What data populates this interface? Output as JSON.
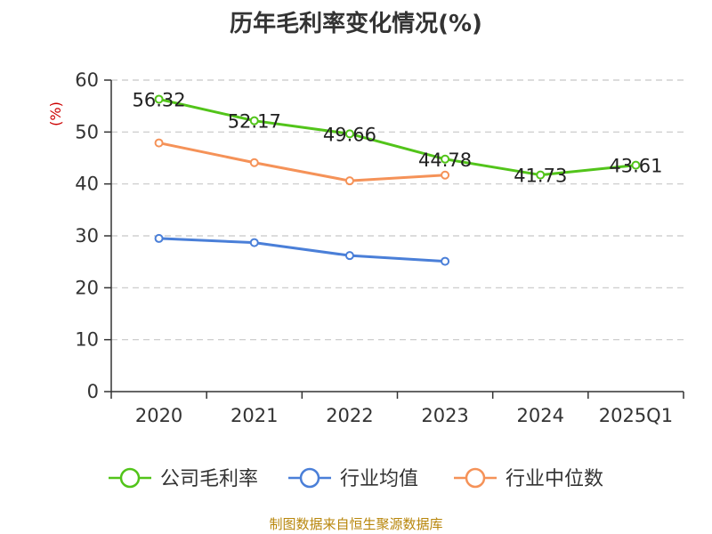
{
  "chart_data": {
    "type": "line",
    "title": "历年毛利率变化情况(%)",
    "ylabel": "(%)",
    "xlabel": "",
    "categories": [
      "2020",
      "2021",
      "2022",
      "2023",
      "2024",
      "2025Q1"
    ],
    "ylim": [
      0,
      60
    ],
    "yticks": [
      0,
      10,
      20,
      30,
      40,
      50,
      60
    ],
    "grid": true,
    "legend_position": "bottom",
    "series": [
      {
        "name": "公司毛利率",
        "color": "#52c41a",
        "values": [
          56.32,
          52.17,
          49.66,
          44.78,
          41.73,
          43.61
        ],
        "show_labels": true
      },
      {
        "name": "行业均值",
        "color": "#4a7fd8",
        "values": [
          29.5,
          28.7,
          26.2,
          25.1,
          null,
          null
        ],
        "show_labels": false
      },
      {
        "name": "行业中位数",
        "color": "#f59258",
        "values": [
          47.9,
          44.1,
          40.6,
          41.7,
          null,
          null
        ],
        "show_labels": false
      }
    ]
  },
  "footer": {
    "source": "制图数据来自恒生聚源数据库"
  }
}
